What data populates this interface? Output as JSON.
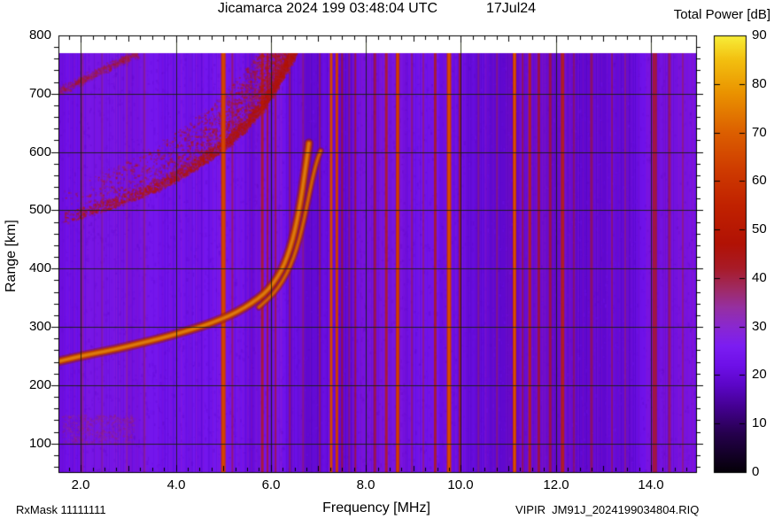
{
  "header": {
    "title": "Jicamarca 2024 199 03:48:04 UTC",
    "date": "17Jul24",
    "colorbar_title": "Total Power [dB]"
  },
  "footer": {
    "rx_mask": "RxMask 11111111",
    "source_file": "VIPIR  JM91J_2024199034804.RIQ"
  },
  "axes": {
    "x_label": "Frequency [MHz]",
    "y_label": "Range [km]",
    "x_ticks": [
      {
        "value": 2.0,
        "label": "2.0"
      },
      {
        "value": 4.0,
        "label": "4.0"
      },
      {
        "value": 6.0,
        "label": "6.0"
      },
      {
        "value": 8.0,
        "label": "8.0"
      },
      {
        "value": 10.0,
        "label": "10.0"
      },
      {
        "value": 12.0,
        "label": "12.0"
      },
      {
        "value": 14.0,
        "label": "14.0"
      }
    ],
    "y_ticks": [
      {
        "value": 800,
        "label": "800"
      },
      {
        "value": 700,
        "label": "700"
      },
      {
        "value": 600,
        "label": "600"
      },
      {
        "value": 500,
        "label": "500"
      },
      {
        "value": 400,
        "label": "400"
      },
      {
        "value": 300,
        "label": "300"
      },
      {
        "value": 200,
        "label": "200"
      },
      {
        "value": 100,
        "label": "100"
      }
    ],
    "colorbar_ticks": [
      {
        "value": 90,
        "label": "90"
      },
      {
        "value": 80,
        "label": "80"
      },
      {
        "value": 70,
        "label": "70"
      },
      {
        "value": 60,
        "label": "60"
      },
      {
        "value": 50,
        "label": "50"
      },
      {
        "value": 40,
        "label": "40"
      },
      {
        "value": 30,
        "label": "30"
      },
      {
        "value": 20,
        "label": "20"
      },
      {
        "value": 10,
        "label": "10"
      },
      {
        "value": 0,
        "label": "0"
      }
    ]
  },
  "chart_data": {
    "type": "heatmap",
    "title": "Jicamarca 2024 199 03:48:04 UTC",
    "subtitle": "17Jul24",
    "xlabel": "Frequency [MHz]",
    "ylabel": "Range [km]",
    "colorbar_label": "Total Power [dB]",
    "x_range_mhz": [
      1.53,
      14.95
    ],
    "y_range_km": [
      51,
      800
    ],
    "data_top_km": 770,
    "colorbar_range_db": [
      0,
      90
    ],
    "background_db": 21,
    "grid": {
      "x_step_mhz": 2,
      "y_step_km": 100
    },
    "x_minor_tick_mhz": 0.25,
    "y_minor_tick_km": 20,
    "palette_stops": [
      [
        0,
        "#050008"
      ],
      [
        8,
        "#26004e"
      ],
      [
        13,
        "#42008c"
      ],
      [
        18,
        "#5c06c8"
      ],
      [
        22,
        "#6e10e8"
      ],
      [
        26,
        "#7c1df2"
      ],
      [
        30,
        "#8a28d0"
      ],
      [
        34,
        "#9630a0"
      ],
      [
        38,
        "#a02a60"
      ],
      [
        42,
        "#a81b28"
      ],
      [
        47,
        "#b11205"
      ],
      [
        55,
        "#c12200"
      ],
      [
        62,
        "#ce3a00"
      ],
      [
        70,
        "#dc5f00"
      ],
      [
        78,
        "#ea9200"
      ],
      [
        85,
        "#f3c010"
      ],
      [
        90,
        "#f8ef3a"
      ]
    ],
    "echo_traces": [
      {
        "name": "f-layer-o-mode",
        "critical_freq_mhz": 6.8,
        "points": [
          [
            1.53,
            241
          ],
          [
            1.9,
            248
          ],
          [
            2.3,
            255
          ],
          [
            2.75,
            262
          ],
          [
            3.2,
            271
          ],
          [
            3.66,
            280
          ],
          [
            4.1,
            290
          ],
          [
            4.55,
            301
          ],
          [
            4.95,
            313
          ],
          [
            5.3,
            326
          ],
          [
            5.6,
            341
          ],
          [
            5.85,
            356
          ],
          [
            6.05,
            374
          ],
          [
            6.22,
            396
          ],
          [
            6.35,
            421
          ],
          [
            6.46,
            450
          ],
          [
            6.55,
            482
          ],
          [
            6.63,
            517
          ],
          [
            6.69,
            551
          ],
          [
            6.74,
            580
          ],
          [
            6.78,
            602
          ],
          [
            6.8,
            615
          ]
        ]
      },
      {
        "name": "f-layer-x-mode",
        "critical_freq_mhz": 7.05,
        "points": [
          [
            5.75,
            334
          ],
          [
            5.95,
            348
          ],
          [
            6.15,
            366
          ],
          [
            6.33,
            390
          ],
          [
            6.48,
            418
          ],
          [
            6.6,
            450
          ],
          [
            6.7,
            484
          ],
          [
            6.79,
            520
          ],
          [
            6.87,
            552
          ],
          [
            6.94,
            576
          ],
          [
            7.0,
            592
          ],
          [
            7.05,
            602
          ]
        ]
      }
    ],
    "second_hop_diffuse": {
      "edge_points": [
        [
          1.53,
          476
        ],
        [
          2.1,
          490
        ],
        [
          2.7,
          506
        ],
        [
          3.3,
          524
        ],
        [
          3.9,
          547
        ],
        [
          4.45,
          574
        ],
        [
          4.95,
          602
        ],
        [
          5.4,
          635
        ],
        [
          5.8,
          672
        ],
        [
          6.1,
          710
        ],
        [
          6.35,
          748
        ],
        [
          6.5,
          772
        ]
      ],
      "thickness_km": 125
    },
    "top_streak": {
      "from": [
        1.53,
        705
      ],
      "to": [
        3.2,
        772
      ]
    },
    "bottom_patch": {
      "f": [
        1.6,
        3.1
      ],
      "r": [
        100,
        150
      ]
    },
    "tint_bands": [
      {
        "f": [
          7.85,
          8.85
        ],
        "a": 0.07
      },
      {
        "f": [
          10.95,
          12.45
        ],
        "a": 0.06
      },
      {
        "f": [
          13.9,
          14.9
        ],
        "a": 0.06
      },
      {
        "f": [
          5.65,
          6.25
        ],
        "a": 0.05
      },
      {
        "f": [
          2.1,
          3.4
        ],
        "a": 0.04
      }
    ],
    "rfi_stripes": [
      {
        "f": 2.04,
        "w": 2,
        "i": 0.22
      },
      {
        "f": 2.45,
        "w": 2,
        "i": 0.15
      },
      {
        "f": 2.97,
        "w": 2,
        "i": 0.15
      },
      {
        "f": 3.34,
        "w": 2,
        "i": 0.2
      },
      {
        "f": 5.0,
        "w": 5,
        "i": 0.95
      },
      {
        "f": 5.19,
        "w": 2,
        "i": 0.35
      },
      {
        "f": 5.82,
        "w": 3,
        "i": 0.6
      },
      {
        "f": 5.93,
        "w": 2,
        "i": 0.5
      },
      {
        "f": 6.1,
        "w": 2,
        "i": 0.45
      },
      {
        "f": 6.4,
        "w": 2,
        "i": 0.3
      },
      {
        "f": 6.68,
        "w": 2,
        "i": 0.25
      },
      {
        "f": 7.03,
        "w": 2,
        "i": 0.3
      },
      {
        "f": 7.27,
        "w": 3,
        "i": 0.95
      },
      {
        "f": 7.39,
        "w": 3,
        "i": 0.88
      },
      {
        "f": 7.5,
        "w": 2,
        "i": 0.5
      },
      {
        "f": 7.65,
        "w": 2,
        "i": 0.3
      },
      {
        "f": 7.78,
        "w": 2,
        "i": 0.5
      },
      {
        "f": 8.19,
        "w": 3,
        "i": 0.45
      },
      {
        "f": 8.43,
        "w": 3,
        "i": 0.6
      },
      {
        "f": 8.67,
        "w": 4,
        "i": 0.85
      },
      {
        "f": 8.97,
        "w": 2,
        "i": 0.3
      },
      {
        "f": 9.21,
        "w": 2,
        "i": 0.25
      },
      {
        "f": 9.46,
        "w": 3,
        "i": 0.62
      },
      {
        "f": 9.75,
        "w": 5,
        "i": 0.9
      },
      {
        "f": 9.98,
        "w": 3,
        "i": 0.5
      },
      {
        "f": 10.37,
        "w": 2,
        "i": 0.2
      },
      {
        "f": 10.76,
        "w": 2,
        "i": 0.25
      },
      {
        "f": 11.13,
        "w": 4,
        "i": 0.92
      },
      {
        "f": 11.3,
        "w": 2,
        "i": 0.4
      },
      {
        "f": 11.45,
        "w": 3,
        "i": 0.7
      },
      {
        "f": 11.64,
        "w": 3,
        "i": 0.5
      },
      {
        "f": 11.88,
        "w": 3,
        "i": 0.45
      },
      {
        "f": 12.14,
        "w": 4,
        "i": 0.7
      },
      {
        "f": 12.38,
        "w": 2,
        "i": 0.3
      },
      {
        "f": 12.75,
        "w": 3,
        "i": 0.35
      },
      {
        "f": 13.18,
        "w": 2,
        "i": 0.3
      },
      {
        "f": 13.46,
        "w": 2,
        "i": 0.2
      },
      {
        "f": 14.08,
        "w": 5,
        "i": 0.55
      },
      {
        "f": 14.39,
        "w": 3,
        "i": 0.35
      },
      {
        "f": 14.67,
        "w": 2,
        "i": 0.25
      }
    ]
  }
}
